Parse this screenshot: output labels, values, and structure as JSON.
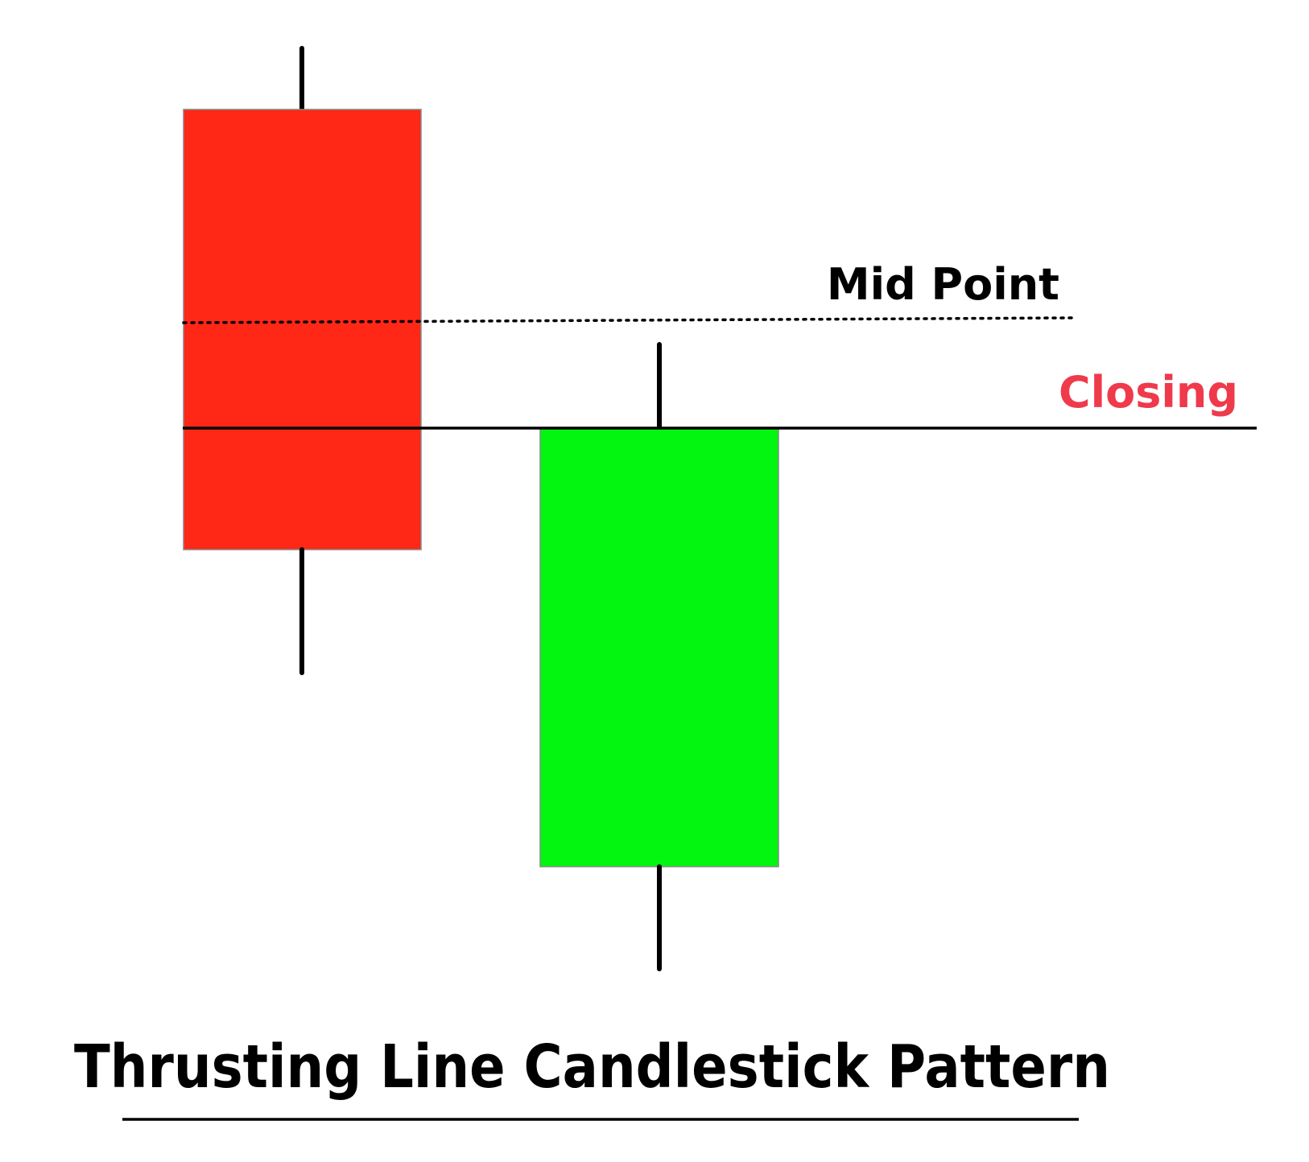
{
  "labels": {
    "mid_point": "Mid Point",
    "closing": "Closing",
    "title": "Thrusting Line Candlestick Pattern"
  },
  "colors": {
    "bearish_body": "#ff2716",
    "bullish_body": "#03f60f",
    "closing_label": "#ef3a4c",
    "line": "#000000"
  },
  "icons": {
    "first_candle": "bearish-candle-icon",
    "second_candle": "bullish-candle-icon"
  }
}
